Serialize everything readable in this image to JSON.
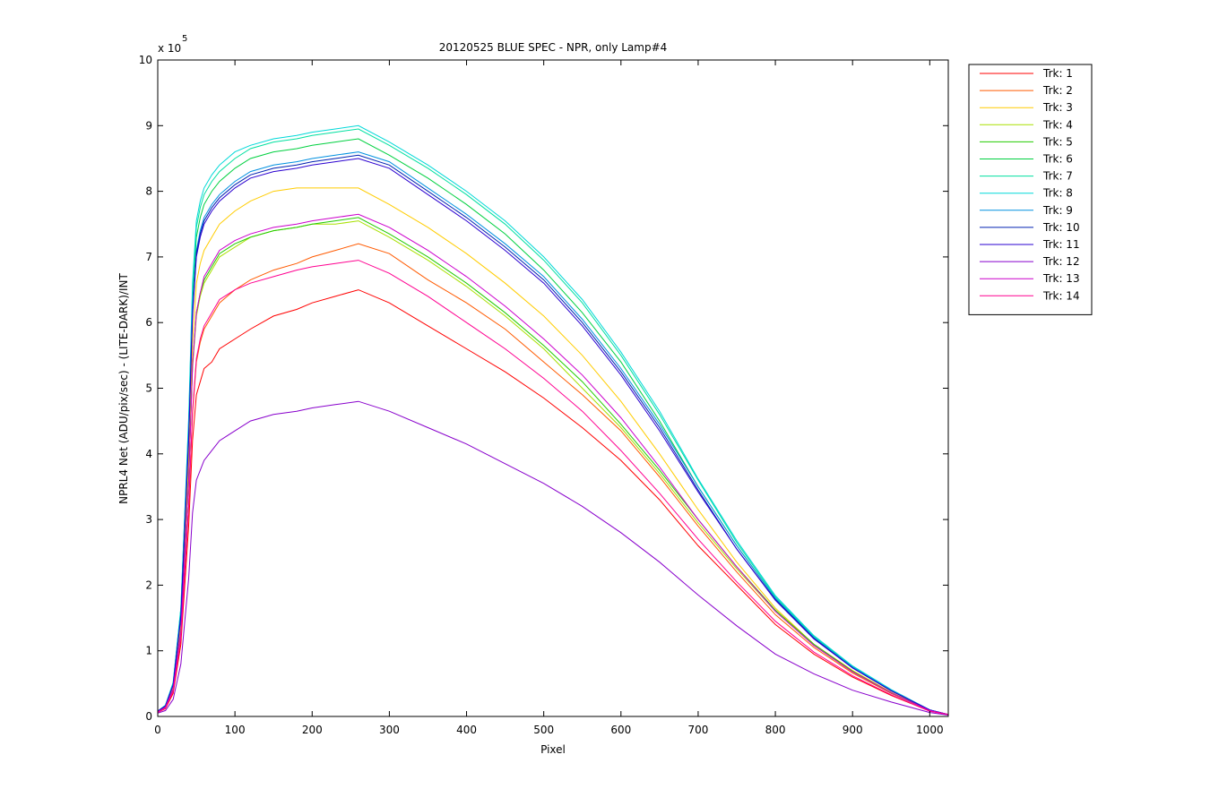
{
  "chart_data": {
    "type": "line",
    "title": "20120525 BLUE SPEC - NPR, only Lamp#4",
    "xlabel": "Pixel",
    "ylabel": "NPRL4 Net (ADU/pix/sec) - (LITE-DARK)/INT",
    "y_exponent_label": "x 10",
    "y_exponent_power": "5",
    "xlim": [
      0,
      1024
    ],
    "ylim": [
      0,
      10
    ],
    "xticks": [
      "0",
      "100",
      "200",
      "300",
      "400",
      "500",
      "600",
      "700",
      "800",
      "900",
      "1000"
    ],
    "yticks": [
      "0",
      "1",
      "2",
      "3",
      "4",
      "5",
      "6",
      "7",
      "8",
      "9",
      "10"
    ],
    "grid": false,
    "legend_position": "outside-top-right",
    "x": [
      0,
      10,
      20,
      30,
      40,
      45,
      50,
      55,
      60,
      70,
      80,
      100,
      120,
      150,
      180,
      200,
      230,
      260,
      300,
      350,
      400,
      450,
      500,
      550,
      600,
      650,
      700,
      750,
      800,
      850,
      900,
      950,
      1000,
      1024
    ],
    "series": [
      {
        "name": "Trk: 1",
        "color": "#ff0000",
        "values": [
          0.06,
          0.12,
          0.35,
          1.1,
          2.9,
          4.2,
          4.9,
          5.1,
          5.3,
          5.4,
          5.6,
          5.75,
          5.9,
          6.1,
          6.2,
          6.3,
          6.4,
          6.5,
          6.3,
          5.95,
          5.6,
          5.25,
          4.85,
          4.4,
          3.9,
          3.3,
          2.6,
          2.0,
          1.4,
          0.95,
          0.6,
          0.32,
          0.08,
          0.03
        ]
      },
      {
        "name": "Trk: 2",
        "color": "#ff5a00",
        "values": [
          0.06,
          0.13,
          0.38,
          1.2,
          3.2,
          4.6,
          5.4,
          5.7,
          5.9,
          6.1,
          6.3,
          6.5,
          6.65,
          6.8,
          6.9,
          7.0,
          7.1,
          7.2,
          7.05,
          6.65,
          6.3,
          5.9,
          5.4,
          4.9,
          4.35,
          3.65,
          2.9,
          2.2,
          1.55,
          1.05,
          0.66,
          0.35,
          0.09,
          0.03
        ]
      },
      {
        "name": "Trk: 3",
        "color": "#ffcc00",
        "values": [
          0.07,
          0.15,
          0.45,
          1.4,
          3.9,
          5.7,
          6.6,
          6.9,
          7.1,
          7.3,
          7.5,
          7.7,
          7.85,
          8.0,
          8.05,
          8.05,
          8.05,
          8.05,
          7.8,
          7.45,
          7.05,
          6.6,
          6.1,
          5.5,
          4.8,
          4.0,
          3.15,
          2.35,
          1.65,
          1.1,
          0.7,
          0.37,
          0.09,
          0.03
        ]
      },
      {
        "name": "Trk: 4",
        "color": "#a8e000",
        "values": [
          0.07,
          0.14,
          0.4,
          1.3,
          3.6,
          5.3,
          6.1,
          6.4,
          6.6,
          6.8,
          7.0,
          7.15,
          7.3,
          7.4,
          7.45,
          7.5,
          7.5,
          7.55,
          7.3,
          6.95,
          6.55,
          6.1,
          5.6,
          5.0,
          4.4,
          3.7,
          2.95,
          2.25,
          1.6,
          1.08,
          0.68,
          0.36,
          0.09,
          0.03
        ]
      },
      {
        "name": "Trk: 5",
        "color": "#22cc00",
        "values": [
          0.07,
          0.14,
          0.41,
          1.3,
          3.6,
          5.35,
          6.15,
          6.45,
          6.65,
          6.85,
          7.05,
          7.2,
          7.3,
          7.4,
          7.45,
          7.5,
          7.55,
          7.6,
          7.35,
          7.0,
          6.6,
          6.15,
          5.65,
          5.1,
          4.45,
          3.75,
          3.0,
          2.28,
          1.62,
          1.1,
          0.69,
          0.36,
          0.09,
          0.03
        ]
      },
      {
        "name": "Trk: 6",
        "color": "#00d040",
        "values": [
          0.08,
          0.17,
          0.5,
          1.6,
          4.4,
          6.4,
          7.3,
          7.6,
          7.8,
          8.0,
          8.15,
          8.35,
          8.5,
          8.6,
          8.65,
          8.7,
          8.75,
          8.8,
          8.55,
          8.2,
          7.8,
          7.35,
          6.8,
          6.15,
          5.4,
          4.5,
          3.5,
          2.6,
          1.8,
          1.2,
          0.75,
          0.4,
          0.1,
          0.03
        ]
      },
      {
        "name": "Trk: 7",
        "color": "#00e0a0",
        "values": [
          0.08,
          0.17,
          0.51,
          1.65,
          4.5,
          6.5,
          7.45,
          7.75,
          7.95,
          8.15,
          8.3,
          8.5,
          8.65,
          8.75,
          8.8,
          8.85,
          8.9,
          8.95,
          8.7,
          8.35,
          7.95,
          7.5,
          6.95,
          6.3,
          5.5,
          4.6,
          3.6,
          2.65,
          1.82,
          1.22,
          0.76,
          0.4,
          0.1,
          0.03
        ]
      },
      {
        "name": "Trk: 8",
        "color": "#00d8d8",
        "values": [
          0.08,
          0.17,
          0.52,
          1.65,
          4.55,
          6.6,
          7.55,
          7.85,
          8.05,
          8.25,
          8.4,
          8.6,
          8.7,
          8.8,
          8.85,
          8.9,
          8.95,
          9.0,
          8.75,
          8.4,
          8.0,
          7.55,
          7.0,
          6.35,
          5.55,
          4.65,
          3.62,
          2.68,
          1.84,
          1.23,
          0.77,
          0.41,
          0.1,
          0.03
        ]
      },
      {
        "name": "Trk: 9",
        "color": "#0090e0",
        "values": [
          0.08,
          0.16,
          0.49,
          1.55,
          4.3,
          6.2,
          7.1,
          7.4,
          7.6,
          7.8,
          7.95,
          8.15,
          8.3,
          8.4,
          8.45,
          8.5,
          8.55,
          8.6,
          8.45,
          8.05,
          7.65,
          7.2,
          6.7,
          6.05,
          5.3,
          4.45,
          3.5,
          2.6,
          1.8,
          1.2,
          0.75,
          0.4,
          0.1,
          0.03
        ]
      },
      {
        "name": "Trk: 10",
        "color": "#0020b0",
        "values": [
          0.08,
          0.16,
          0.48,
          1.55,
          4.25,
          6.15,
          7.05,
          7.35,
          7.55,
          7.75,
          7.9,
          8.1,
          8.25,
          8.35,
          8.4,
          8.45,
          8.5,
          8.55,
          8.4,
          8.0,
          7.6,
          7.15,
          6.65,
          6.0,
          5.25,
          4.4,
          3.45,
          2.55,
          1.78,
          1.19,
          0.74,
          0.39,
          0.1,
          0.03
        ]
      },
      {
        "name": "Trk: 11",
        "color": "#2a00d0",
        "values": [
          0.08,
          0.16,
          0.48,
          1.5,
          4.2,
          6.1,
          7.0,
          7.3,
          7.5,
          7.7,
          7.85,
          8.05,
          8.2,
          8.3,
          8.35,
          8.4,
          8.45,
          8.5,
          8.35,
          7.95,
          7.55,
          7.1,
          6.6,
          5.95,
          5.2,
          4.35,
          3.42,
          2.55,
          1.77,
          1.18,
          0.74,
          0.39,
          0.1,
          0.03
        ]
      },
      {
        "name": "Trk: 12",
        "color": "#8800cc",
        "values": [
          0.05,
          0.09,
          0.26,
          0.8,
          2.1,
          3.1,
          3.6,
          3.75,
          3.9,
          4.05,
          4.2,
          4.35,
          4.5,
          4.6,
          4.65,
          4.7,
          4.75,
          4.8,
          4.65,
          4.4,
          4.15,
          3.85,
          3.55,
          3.2,
          2.8,
          2.35,
          1.85,
          1.38,
          0.95,
          0.65,
          0.4,
          0.22,
          0.06,
          0.02
        ]
      },
      {
        "name": "Trk: 13",
        "color": "#cc00cc",
        "values": [
          0.07,
          0.14,
          0.42,
          1.3,
          3.6,
          5.35,
          6.15,
          6.45,
          6.7,
          6.9,
          7.1,
          7.25,
          7.35,
          7.45,
          7.5,
          7.55,
          7.6,
          7.65,
          7.45,
          7.1,
          6.7,
          6.25,
          5.75,
          5.2,
          4.55,
          3.8,
          3.0,
          2.28,
          1.6,
          1.08,
          0.68,
          0.36,
          0.09,
          0.03
        ]
      },
      {
        "name": "Trk: 14",
        "color": "#ff0090",
        "values": [
          0.06,
          0.13,
          0.38,
          1.2,
          3.2,
          4.65,
          5.45,
          5.75,
          5.95,
          6.15,
          6.35,
          6.5,
          6.6,
          6.7,
          6.8,
          6.85,
          6.9,
          6.95,
          6.75,
          6.4,
          6.0,
          5.6,
          5.15,
          4.65,
          4.05,
          3.4,
          2.7,
          2.05,
          1.45,
          0.98,
          0.62,
          0.33,
          0.08,
          0.03
        ]
      }
    ]
  }
}
